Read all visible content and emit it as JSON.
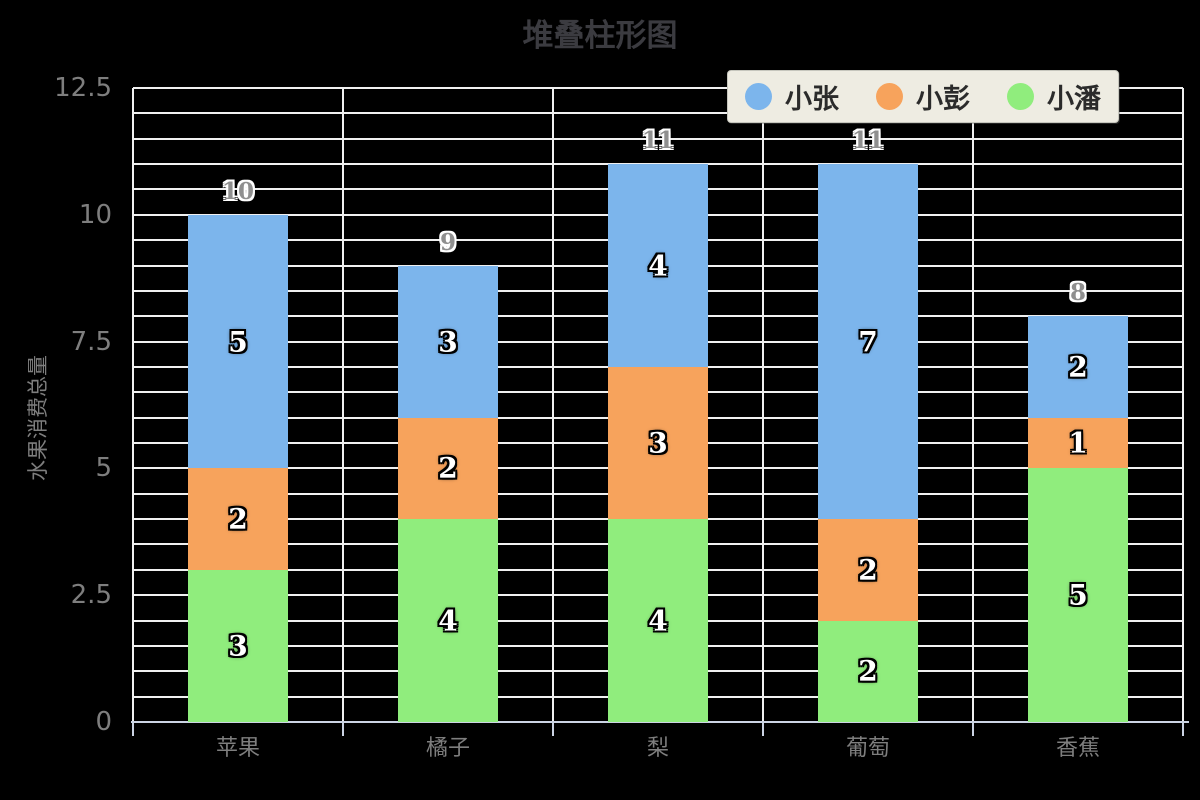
{
  "title": "堆叠柱形图",
  "legend": {
    "items": [
      {
        "label": "小张",
        "color": "#7cb5ec"
      },
      {
        "label": "小彭",
        "color": "#f7a35c"
      },
      {
        "label": "小潘",
        "color": "#90ed7d"
      }
    ]
  },
  "y_axis": {
    "label": "水果消费总量",
    "tick_labels": [
      "0",
      "2.5",
      "5",
      "7.5",
      "10",
      "12.5"
    ],
    "tick_values": [
      0,
      2.5,
      5,
      7.5,
      10,
      12.5
    ]
  },
  "x_axis": {
    "categories": [
      "苹果",
      "橘子",
      "梨",
      "葡萄",
      "香蕉"
    ]
  },
  "chart_data": {
    "type": "bar",
    "stacked": true,
    "title": "堆叠柱形图",
    "xlabel": "",
    "ylabel": "水果消费总量",
    "categories": [
      "苹果",
      "橘子",
      "梨",
      "葡萄",
      "香蕉"
    ],
    "series": [
      {
        "name": "小张",
        "color": "#7cb5ec",
        "values": [
          5,
          3,
          4,
          7,
          2
        ]
      },
      {
        "name": "小彭",
        "color": "#f7a35c",
        "values": [
          2,
          2,
          3,
          2,
          1
        ]
      },
      {
        "name": "小潘",
        "color": "#90ed7d",
        "values": [
          3,
          4,
          4,
          2,
          5
        ]
      }
    ],
    "stack_order_bottom_to_top": [
      "小潘",
      "小彭",
      "小张"
    ],
    "totals": [
      10,
      9,
      11,
      11,
      8
    ],
    "ylim": [
      0,
      12.5
    ],
    "y_major_ticks": [
      0,
      2.5,
      5,
      7.5,
      10,
      12.5
    ],
    "y_minor_step": 0.5,
    "grid": true,
    "legend_position": "top-right",
    "background": "#000000"
  },
  "colors": {
    "background": "#000000",
    "grid": "#f0f0f0",
    "axis_line": "#ccd4e4",
    "title_text": "#3b3b40",
    "axis_text": "#7e7e7e",
    "total_label": "#8f8f8f",
    "segment_label": "#ffffff"
  }
}
